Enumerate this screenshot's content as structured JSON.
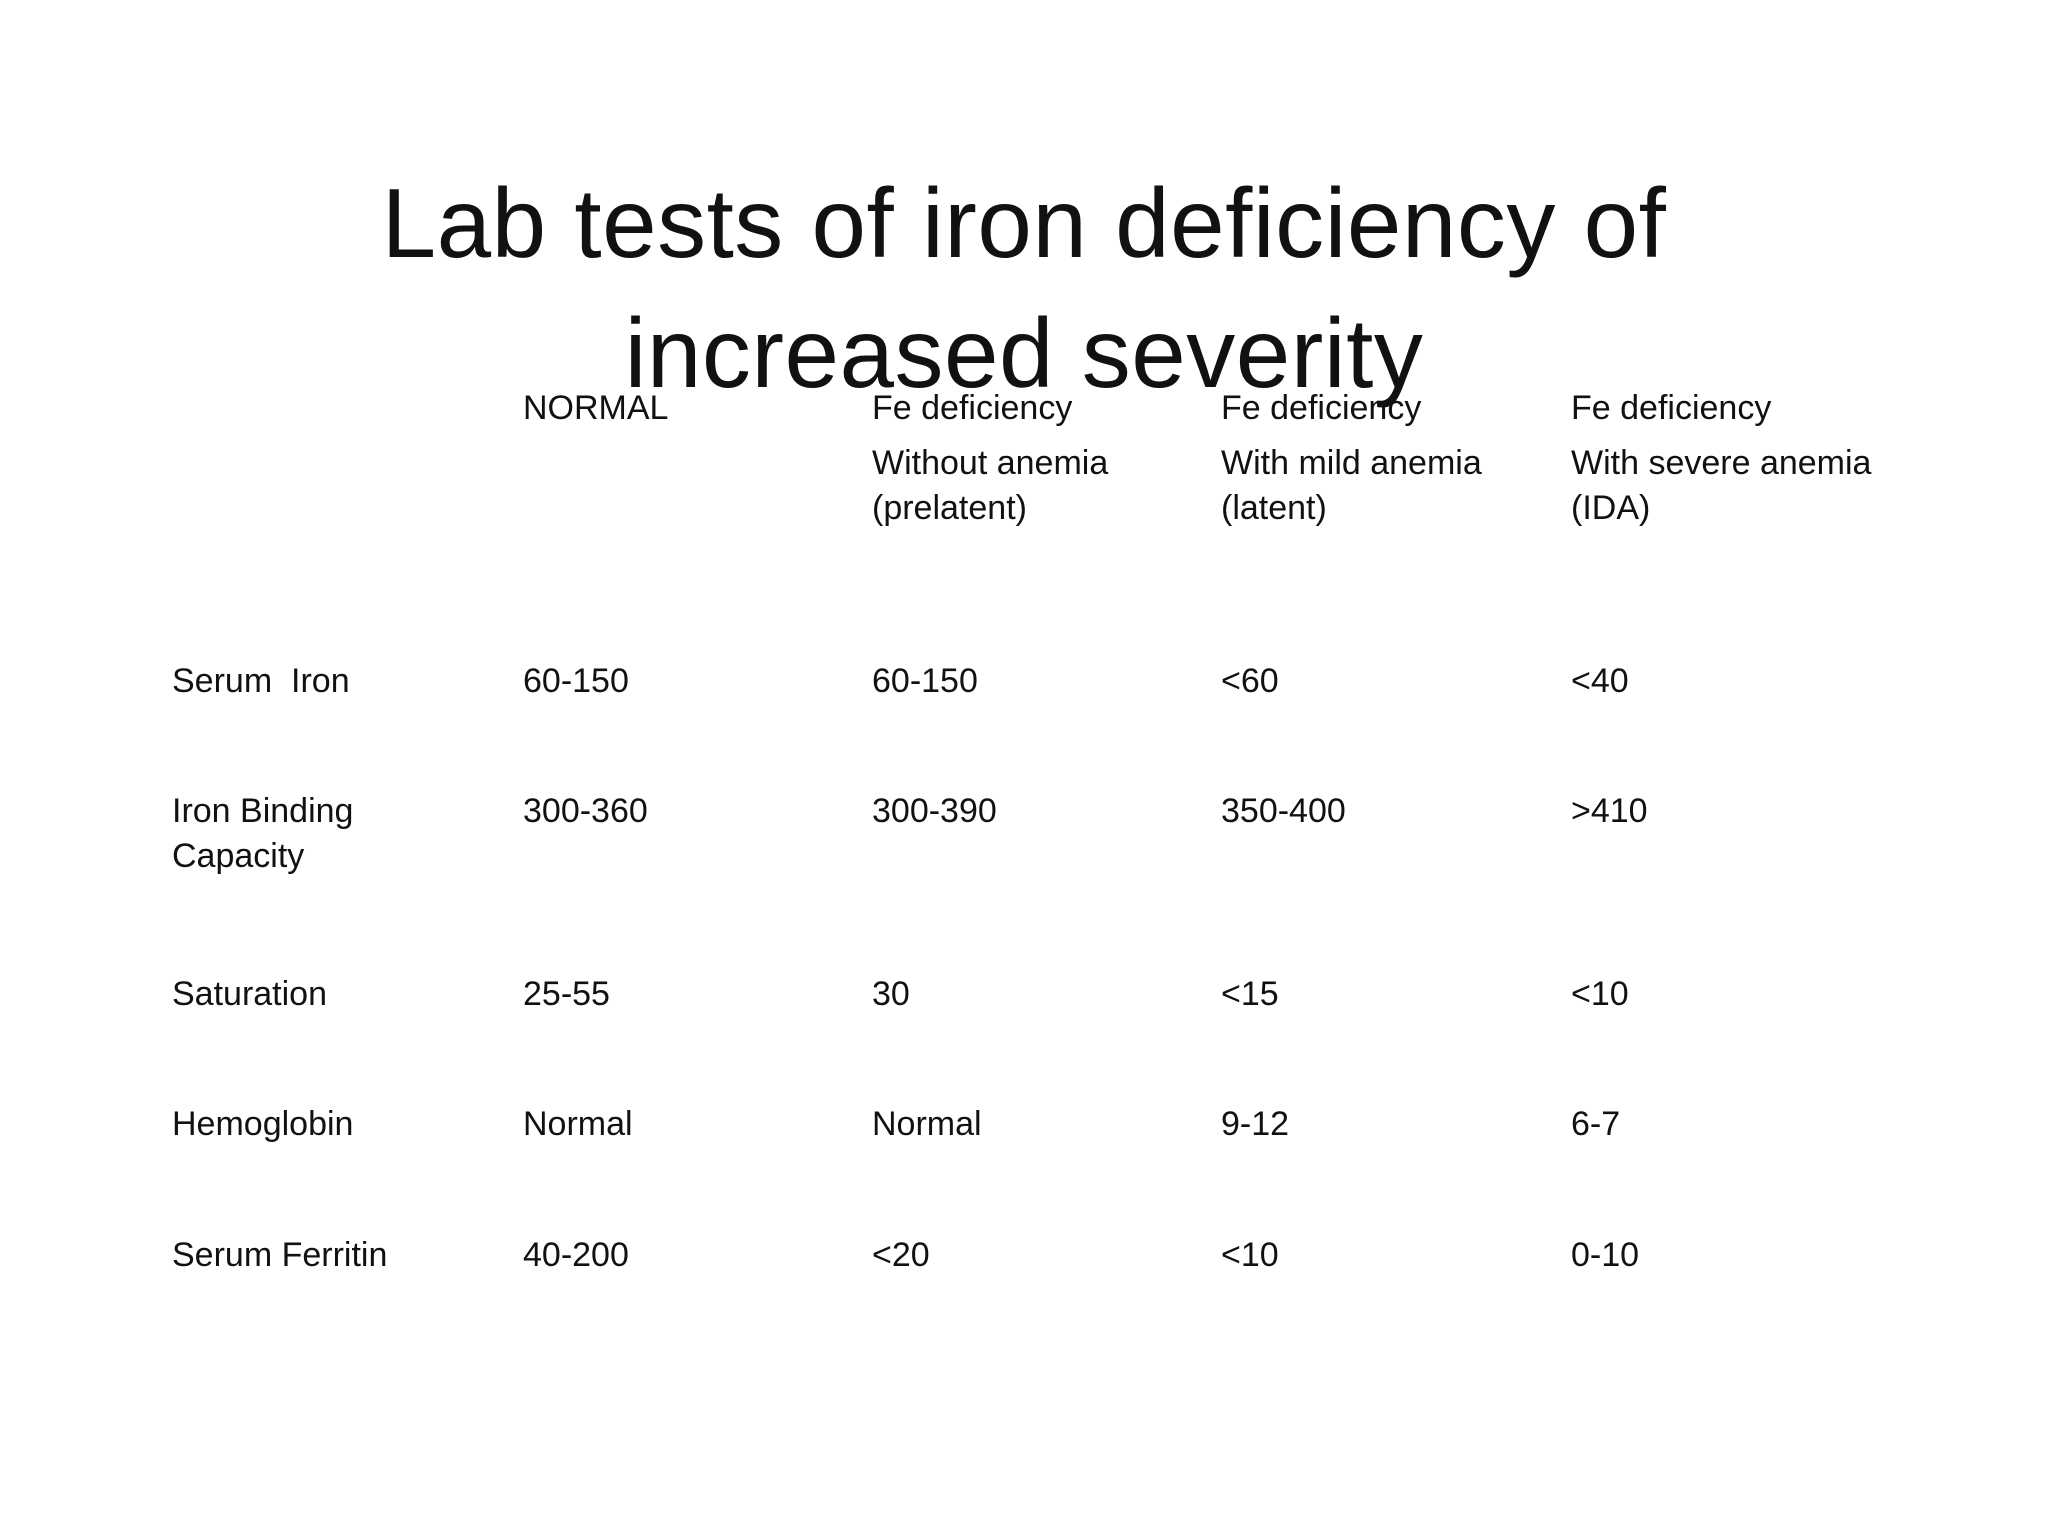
{
  "title": {
    "line1": "Lab tests of iron deficiency of",
    "line2": "increased severity"
  },
  "table": {
    "headers": [
      {
        "line1": "",
        "line2": "",
        "line3": ""
      },
      {
        "line1": "NORMAL",
        "line2": "",
        "line3": ""
      },
      {
        "line1": "Fe deficiency",
        "line2": "Without anemia",
        "line3": "(prelatent)"
      },
      {
        "line1": "Fe deficiency",
        "line2": "With mild anemia",
        "line3": "(latent)"
      },
      {
        "line1": "Fe deficiency",
        "line2": "With severe anemia",
        "line3": "(IDA)"
      }
    ],
    "rows": [
      {
        "label_line1": "Serum  Iron",
        "label_line2": "",
        "values": [
          "60-150",
          "60-150",
          "<60",
          "<40"
        ]
      },
      {
        "label_line1": "Iron Binding",
        "label_line2": "Capacity",
        "values": [
          "300-360",
          "300-390",
          "350-400",
          ">410"
        ]
      },
      {
        "label_line1": "Saturation",
        "label_line2": "",
        "values": [
          "25-55",
          "30",
          "<15",
          "<10"
        ]
      },
      {
        "label_line1": "Hemoglobin",
        "label_line2": "",
        "values": [
          "Normal",
          "Normal",
          "9-12",
          "6-7"
        ]
      },
      {
        "label_line1": "Serum Ferritin",
        "label_line2": "",
        "values": [
          "40-200",
          "<20",
          "<10",
          "0-10"
        ]
      }
    ]
  }
}
